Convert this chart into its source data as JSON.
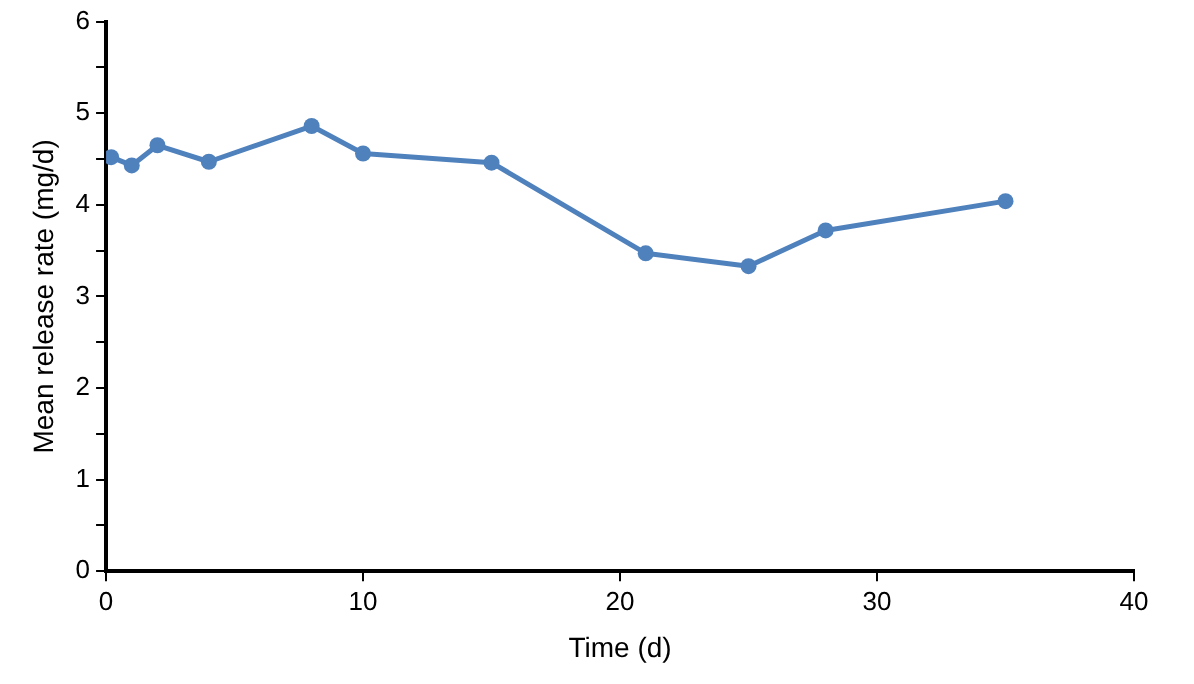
{
  "chart_data": {
    "type": "line",
    "xlabel": "Time (d)",
    "ylabel": "Mean release rate (mg/d)",
    "x": [
      0.2,
      1,
      2,
      4,
      8,
      10,
      15,
      21,
      25,
      28,
      35
    ],
    "series": [
      {
        "color": "#4f81bd",
        "values": [
          4.52,
          4.43,
          4.65,
          4.47,
          4.86,
          4.56,
          4.46,
          3.47,
          3.33,
          3.72,
          4.04
        ]
      }
    ],
    "xlim": [
      0,
      40
    ],
    "xticks": [
      0,
      10,
      20,
      30,
      40
    ],
    "ylim": [
      0,
      6
    ],
    "yticks": [
      0,
      {
        "value": 0.5,
        "label": null
      },
      1,
      {
        "value": 1.5,
        "label": null
      },
      2,
      {
        "value": 2.5,
        "label": null
      },
      3,
      {
        "value": 3.5,
        "label": null
      },
      4,
      {
        "value": 4.5,
        "label": null
      },
      5,
      {
        "value": 5.5,
        "label": null
      },
      6
    ],
    "grid": false,
    "legend": false,
    "marker": "circle",
    "line_style": "solid"
  }
}
